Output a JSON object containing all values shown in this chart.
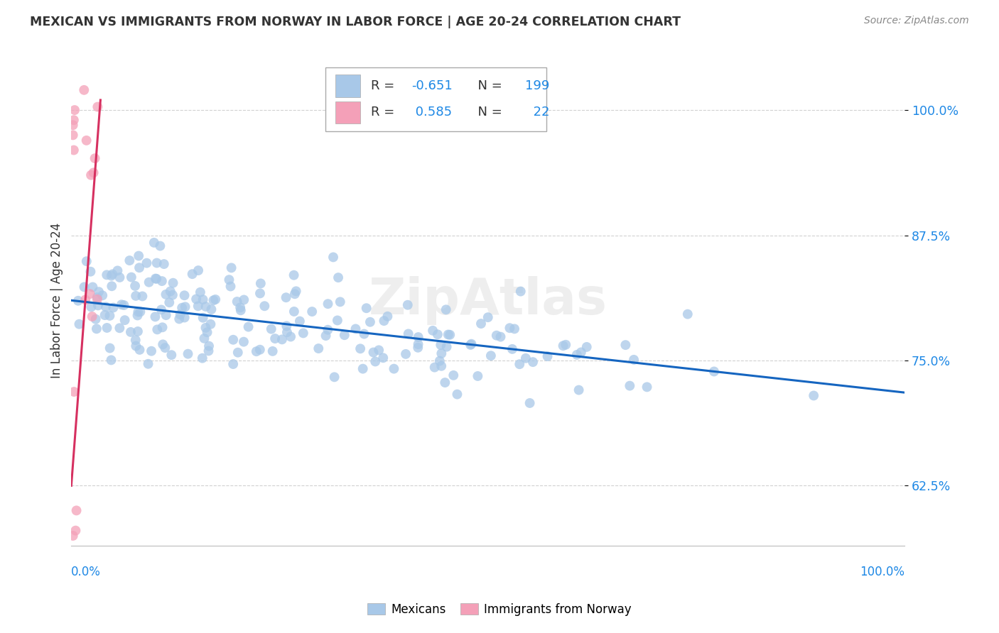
{
  "title": "MEXICAN VS IMMIGRANTS FROM NORWAY IN LABOR FORCE | AGE 20-24 CORRELATION CHART",
  "source": "Source: ZipAtlas.com",
  "ylabel": "In Labor Force | Age 20-24",
  "ylabel_ticks": [
    "62.5%",
    "75.0%",
    "87.5%",
    "100.0%"
  ],
  "ylabel_tick_vals": [
    0.625,
    0.75,
    0.875,
    1.0
  ],
  "xlim": [
    0.0,
    1.0
  ],
  "ylim": [
    0.565,
    1.055
  ],
  "legend_title_mexicans": "Mexicans",
  "legend_title_norway": "Immigrants from Norway",
  "blue_color": "#a8c8e8",
  "pink_color": "#f4a0b8",
  "blue_line_color": "#1565c0",
  "pink_line_color": "#d63060",
  "blue_R": -0.651,
  "blue_N": 199,
  "pink_R": 0.585,
  "pink_N": 22,
  "blue_line_x": [
    0.0,
    1.0
  ],
  "blue_line_y": [
    0.81,
    0.718
  ],
  "pink_line_x": [
    0.0,
    0.035
  ],
  "pink_line_y": [
    0.625,
    1.01
  ],
  "watermark": "ZipAtlas",
  "background_color": "#ffffff",
  "grid_color": "#cccccc",
  "text_color_dark": "#333333",
  "text_color_blue": "#1e88e5",
  "text_color_source": "#888888"
}
